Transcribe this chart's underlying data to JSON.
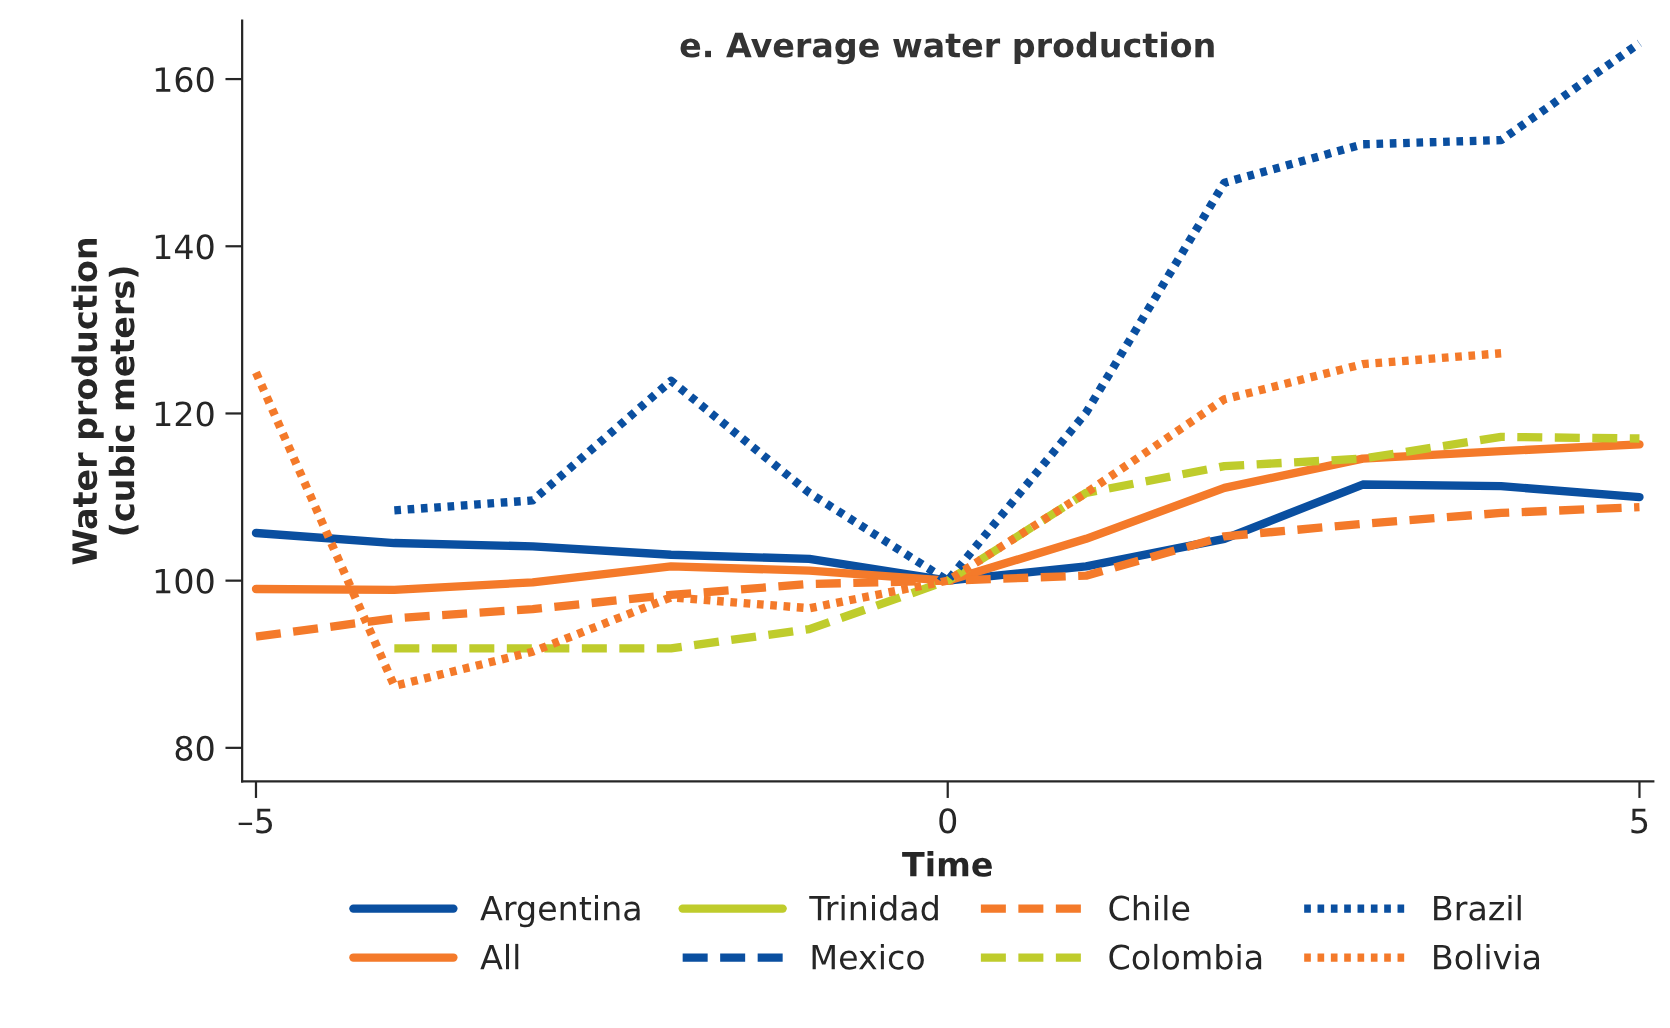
{
  "chart_data": {
    "type": "line",
    "title": "e. Average water production",
    "xlabel": "Time",
    "ylabel": "Water production\n(cubic meters)",
    "x": [
      -5,
      -4,
      -3,
      -2,
      -1,
      0,
      1,
      2,
      3,
      4,
      5
    ],
    "xlim": [
      -5.1,
      5.1
    ],
    "xticks": [
      {
        "value": -5,
        "label": "–5"
      },
      0,
      5
    ],
    "ylim": [
      76,
      167
    ],
    "yticks": [
      80,
      100,
      120,
      140,
      160
    ],
    "grid": false,
    "legend": "bottom",
    "series": [
      {
        "name": "Argentina",
        "color": "#0a4fa0",
        "line_style": "solid",
        "values": [
          105.7,
          104.5,
          104.1,
          103.1,
          102.6,
          100,
          101.7,
          105.0,
          111.5,
          111.3,
          110.0
        ]
      },
      {
        "name": "All",
        "color": "#f47a2a",
        "line_style": "solid",
        "values": [
          99.0,
          98.9,
          99.8,
          101.7,
          101.2,
          100,
          105.0,
          111.1,
          114.6,
          115.5,
          116.3
        ]
      },
      {
        "name": "Trinidad",
        "color": "#bfcc2c",
        "line_style": "solid",
        "values": [
          null,
          null,
          null,
          null,
          null,
          null,
          null,
          null,
          null,
          null,
          null
        ]
      },
      {
        "name": "Mexico",
        "color": "#0a4fa0",
        "line_style": "dashed",
        "values": [
          null,
          null,
          null,
          null,
          null,
          null,
          null,
          null,
          null,
          null,
          null
        ]
      },
      {
        "name": "Chile",
        "color": "#f47a2a",
        "line_style": "dashed",
        "values": [
          93.3,
          95.5,
          96.6,
          98.3,
          99.6,
          100,
          100.6,
          105.3,
          106.8,
          108.1,
          108.8
        ]
      },
      {
        "name": "Colombia",
        "color": "#bfcc2c",
        "line_style": "dashed",
        "values": [
          null,
          91.9,
          91.9,
          91.9,
          94.2,
          100,
          110.5,
          113.7,
          114.6,
          117.2,
          117.0
        ]
      },
      {
        "name": "Brazil",
        "color": "#0a4fa0",
        "line_style": "dotted",
        "values": [
          null,
          108.4,
          109.6,
          123.9,
          110.5,
          100,
          120.1,
          147.6,
          152.2,
          152.7,
          164.3
        ]
      },
      {
        "name": "Bolivia",
        "color": "#f47a2a",
        "line_style": "dotted",
        "values": [
          124.9,
          87.4,
          91.5,
          98.0,
          96.7,
          100,
          110.5,
          121.7,
          125.9,
          127.2,
          null
        ]
      }
    ]
  }
}
